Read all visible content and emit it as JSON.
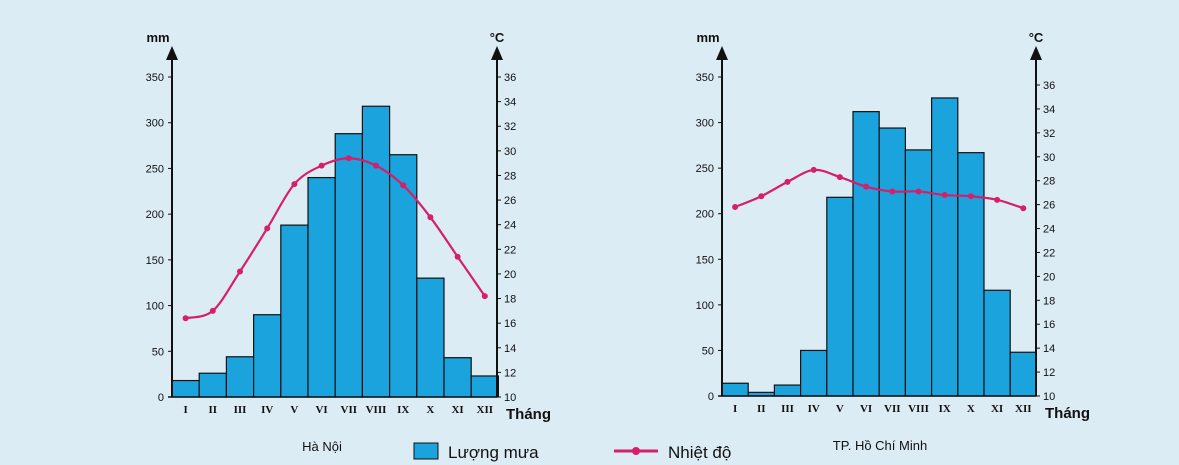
{
  "legend": {
    "bar_label": "Lượng mưa",
    "line_label": "Nhiệt độ",
    "bar_color": "#1aa3dd",
    "line_color": "#d61f6b"
  },
  "chart_data": [
    {
      "type": "bar",
      "title": "Hà Nội",
      "categories": [
        "I",
        "II",
        "III",
        "IV",
        "V",
        "VI",
        "VII",
        "VIII",
        "IX",
        "X",
        "XI",
        "XII"
      ],
      "xlabel": "Tháng",
      "y_left_label": "mm",
      "y_right_label": "°C",
      "y_left_ticks": [
        0,
        50,
        100,
        150,
        200,
        250,
        300,
        350
      ],
      "y_right_ticks": [
        10,
        12,
        14,
        16,
        18,
        20,
        22,
        24,
        26,
        28,
        30,
        32,
        34,
        36
      ],
      "ylim_left": [
        0,
        350
      ],
      "ylim_right": [
        10,
        36
      ],
      "series": [
        {
          "name": "Lượng mưa",
          "kind": "bar",
          "values": [
            18,
            26,
            44,
            90,
            188,
            240,
            288,
            318,
            265,
            130,
            43,
            23
          ]
        },
        {
          "name": "Nhiệt độ",
          "kind": "line",
          "values": [
            16.4,
            17.0,
            20.2,
            23.7,
            27.3,
            28.8,
            29.4,
            28.8,
            27.2,
            24.6,
            21.4,
            18.2
          ]
        }
      ]
    },
    {
      "type": "bar",
      "title": "TP. Hồ Chí Minh",
      "categories": [
        "I",
        "II",
        "III",
        "IV",
        "V",
        "VI",
        "VII",
        "VIII",
        "IX",
        "X",
        "XI",
        "XII"
      ],
      "xlabel": "Tháng",
      "y_left_label": "mm",
      "y_right_label": "°C",
      "y_left_ticks": [
        0,
        50,
        100,
        150,
        200,
        250,
        300,
        350
      ],
      "y_right_ticks": [
        10,
        12,
        14,
        16,
        18,
        20,
        22,
        24,
        26,
        28,
        30,
        32,
        34,
        36
      ],
      "ylim_left": [
        0,
        350
      ],
      "ylim_right": [
        10,
        36
      ],
      "series": [
        {
          "name": "Lượng mưa",
          "kind": "bar",
          "values": [
            14,
            4,
            12,
            50,
            218,
            312,
            294,
            270,
            327,
            267,
            116,
            48
          ]
        },
        {
          "name": "Nhiệt độ",
          "kind": "line",
          "values": [
            25.8,
            26.7,
            27.9,
            28.9,
            28.3,
            27.5,
            27.1,
            27.1,
            26.8,
            26.7,
            26.4,
            25.7
          ]
        }
      ]
    }
  ]
}
